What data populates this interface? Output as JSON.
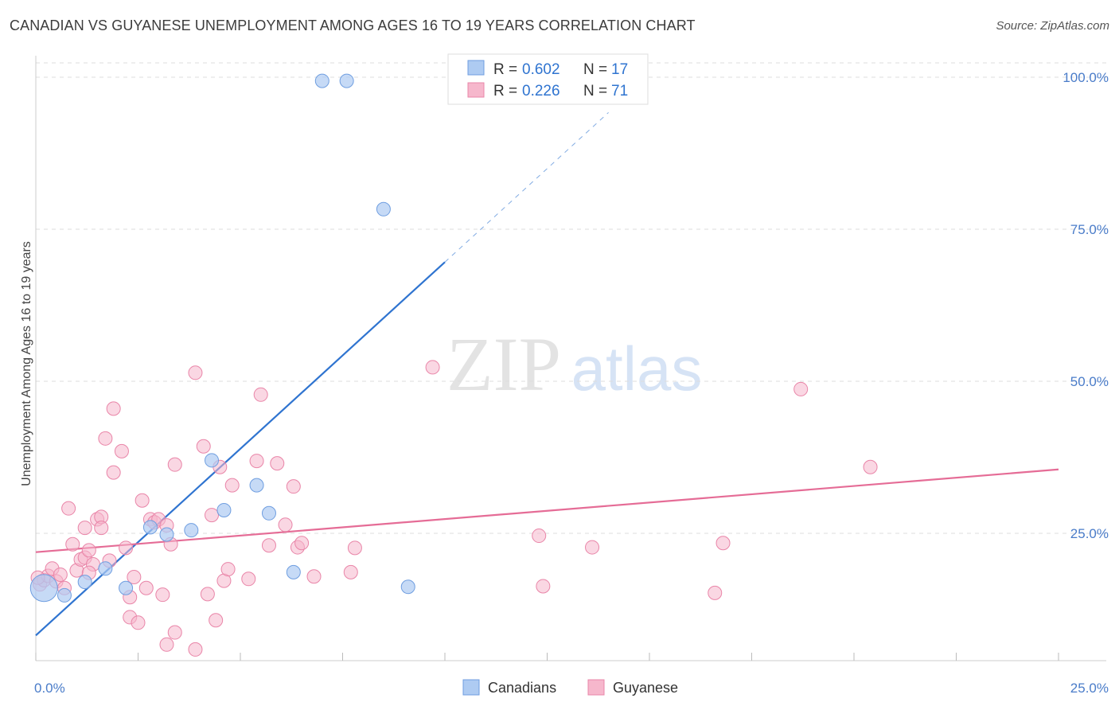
{
  "title": "CANADIAN VS GUYANESE UNEMPLOYMENT AMONG AGES 16 TO 19 YEARS CORRELATION CHART",
  "source": "Source: ZipAtlas.com",
  "watermark": {
    "zip": "ZIP",
    "atlas": "atlas"
  },
  "colors": {
    "canadians_fill": "#aecbf2",
    "canadians_stroke": "#6f9ee0",
    "canadians_line": "#2f74d0",
    "guyanese_fill": "#f6b7cc",
    "guyanese_stroke": "#e985a8",
    "guyanese_line": "#e56c96",
    "tick_label": "#4a7cc9",
    "grid": "#dddddd"
  },
  "legend_top": [
    {
      "r_label": "R = ",
      "r_value": "0.602",
      "n_label": "N = ",
      "n_value": "17"
    },
    {
      "r_label": "R = ",
      "r_value": "0.226",
      "n_label": "N = ",
      "n_value": "71"
    }
  ],
  "legend_bottom": [
    "Canadians",
    "Guyanese"
  ],
  "chart_data": {
    "type": "scatter",
    "title": "CANADIAN VS GUYANESE UNEMPLOYMENT AMONG AGES 16 TO 19 YEARS CORRELATION CHART",
    "xlabel": "",
    "ylabel": "Unemployment Among Ages 16 to 19 years",
    "xlim": [
      0,
      25
    ],
    "ylim": [
      0,
      105
    ],
    "x_tick_labels": [
      "0.0%",
      "25.0%"
    ],
    "y_ticks": [
      25,
      50,
      75,
      100
    ],
    "y_tick_labels": [
      "25.0%",
      "50.0%",
      "75.0%",
      "100.0%"
    ],
    "grid": true,
    "legend_position": "top-center",
    "series": [
      {
        "name": "Canadians",
        "r": 0.602,
        "n": 17,
        "trend": {
          "x0": 0,
          "y0": 8.2,
          "x1": 10,
          "y1": 69.6,
          "dashed_to_x": 14,
          "dashed_to_y": 94.2
        },
        "points": [
          {
            "x": 0.2,
            "y": 16.0,
            "big": true
          },
          {
            "x": 0.7,
            "y": 14.8
          },
          {
            "x": 1.2,
            "y": 17.0
          },
          {
            "x": 1.7,
            "y": 19.2
          },
          {
            "x": 2.2,
            "y": 16.0
          },
          {
            "x": 2.8,
            "y": 26.0
          },
          {
            "x": 3.2,
            "y": 24.8
          },
          {
            "x": 3.8,
            "y": 25.5
          },
          {
            "x": 4.3,
            "y": 37.0
          },
          {
            "x": 4.6,
            "y": 28.8
          },
          {
            "x": 5.4,
            "y": 32.9
          },
          {
            "x": 5.7,
            "y": 28.3
          },
          {
            "x": 6.3,
            "y": 18.6
          },
          {
            "x": 7.0,
            "y": 99.4
          },
          {
            "x": 7.6,
            "y": 99.4
          },
          {
            "x": 8.5,
            "y": 78.3
          },
          {
            "x": 9.1,
            "y": 16.2
          }
        ]
      },
      {
        "name": "Guyanese",
        "r": 0.226,
        "n": 71,
        "trend": {
          "x0": 0,
          "y0": 21.9,
          "x1": 25,
          "y1": 35.5
        },
        "points": [
          {
            "x": 0.1,
            "y": 16.6
          },
          {
            "x": 0.2,
            "y": 17.3
          },
          {
            "x": 0.3,
            "y": 18.0
          },
          {
            "x": 0.4,
            "y": 19.2
          },
          {
            "x": 0.5,
            "y": 17.1
          },
          {
            "x": 0.6,
            "y": 18.2
          },
          {
            "x": 0.7,
            "y": 16.0
          },
          {
            "x": 0.8,
            "y": 29.1
          },
          {
            "x": 0.9,
            "y": 23.2
          },
          {
            "x": 1.0,
            "y": 18.9
          },
          {
            "x": 1.1,
            "y": 20.7
          },
          {
            "x": 1.2,
            "y": 21.0
          },
          {
            "x": 1.2,
            "y": 25.9
          },
          {
            "x": 1.3,
            "y": 22.2
          },
          {
            "x": 1.4,
            "y": 19.9
          },
          {
            "x": 1.5,
            "y": 27.3
          },
          {
            "x": 1.6,
            "y": 27.7
          },
          {
            "x": 1.6,
            "y": 25.9
          },
          {
            "x": 1.7,
            "y": 40.6
          },
          {
            "x": 1.8,
            "y": 20.5
          },
          {
            "x": 1.9,
            "y": 35.0
          },
          {
            "x": 1.9,
            "y": 45.5
          },
          {
            "x": 2.1,
            "y": 38.5
          },
          {
            "x": 2.2,
            "y": 22.6
          },
          {
            "x": 2.3,
            "y": 11.2
          },
          {
            "x": 2.3,
            "y": 14.5
          },
          {
            "x": 2.4,
            "y": 17.8
          },
          {
            "x": 2.5,
            "y": 10.3
          },
          {
            "x": 2.6,
            "y": 30.4
          },
          {
            "x": 2.7,
            "y": 16.0
          },
          {
            "x": 2.8,
            "y": 27.3
          },
          {
            "x": 2.9,
            "y": 26.8
          },
          {
            "x": 3.0,
            "y": 27.3
          },
          {
            "x": 3.1,
            "y": 14.9
          },
          {
            "x": 3.2,
            "y": 26.3
          },
          {
            "x": 3.2,
            "y": 6.7
          },
          {
            "x": 3.3,
            "y": 23.2
          },
          {
            "x": 3.4,
            "y": 36.3
          },
          {
            "x": 3.4,
            "y": 8.7
          },
          {
            "x": 3.9,
            "y": 5.9
          },
          {
            "x": 3.9,
            "y": 51.4
          },
          {
            "x": 4.1,
            "y": 39.3
          },
          {
            "x": 4.2,
            "y": 15.0
          },
          {
            "x": 4.3,
            "y": 28.0
          },
          {
            "x": 4.4,
            "y": 10.7
          },
          {
            "x": 4.5,
            "y": 35.9
          },
          {
            "x": 4.6,
            "y": 17.2
          },
          {
            "x": 4.7,
            "y": 19.1
          },
          {
            "x": 4.8,
            "y": 32.9
          },
          {
            "x": 5.2,
            "y": 17.5
          },
          {
            "x": 5.4,
            "y": 36.9
          },
          {
            "x": 5.5,
            "y": 47.8
          },
          {
            "x": 5.7,
            "y": 23.0
          },
          {
            "x": 5.9,
            "y": 36.5
          },
          {
            "x": 6.1,
            "y": 26.4
          },
          {
            "x": 6.3,
            "y": 32.7
          },
          {
            "x": 6.4,
            "y": 22.7
          },
          {
            "x": 6.5,
            "y": 23.4
          },
          {
            "x": 6.8,
            "y": 17.9
          },
          {
            "x": 7.7,
            "y": 18.6
          },
          {
            "x": 7.8,
            "y": 22.6
          },
          {
            "x": 9.7,
            "y": 52.3
          },
          {
            "x": 12.3,
            "y": 24.6
          },
          {
            "x": 12.4,
            "y": 16.3
          },
          {
            "x": 13.6,
            "y": 22.7
          },
          {
            "x": 16.6,
            "y": 15.2
          },
          {
            "x": 16.8,
            "y": 23.4
          },
          {
            "x": 18.7,
            "y": 48.7
          },
          {
            "x": 20.4,
            "y": 35.9
          },
          {
            "x": 0.05,
            "y": 17.7
          },
          {
            "x": 1.3,
            "y": 18.5
          }
        ]
      }
    ]
  }
}
